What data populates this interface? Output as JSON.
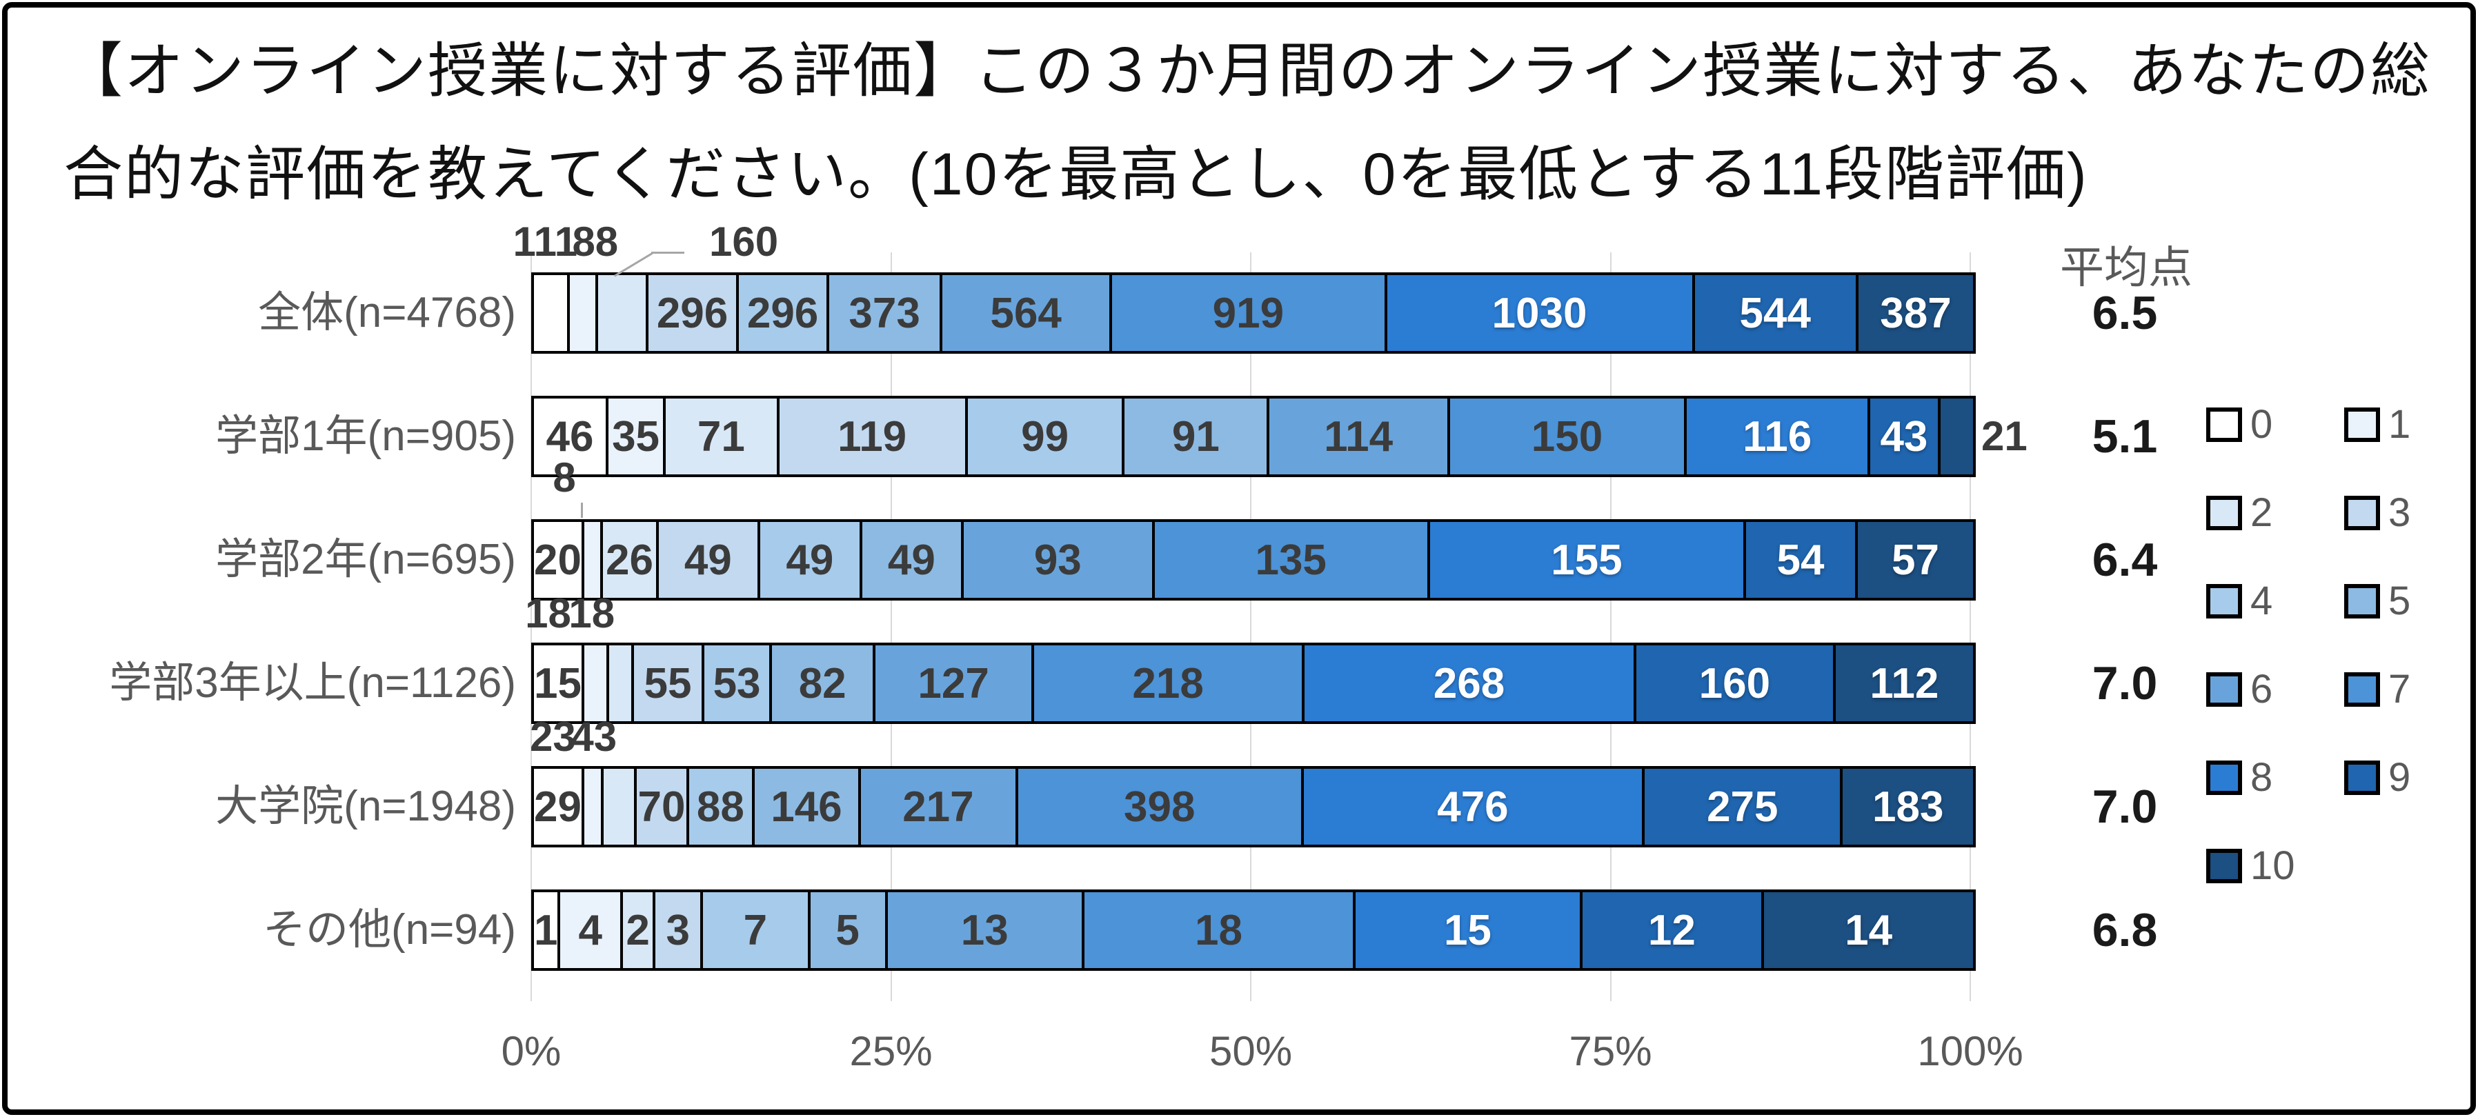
{
  "title": {
    "line1": "【オンライン授業に対する評価】この３か月間のオンライン授業に対する、あなたの総",
    "line2": "合的な評価を教えてください。(10を最高とし、0を最低とする11段階評価)"
  },
  "average_header": "平均点",
  "colors": {
    "palette": [
      "#FFFFFF",
      "#EAF2FB",
      "#D9E8F6",
      "#C2D9F0",
      "#A7CBEB",
      "#8CBAE3",
      "#68A4DB",
      "#4C93D8",
      "#2B7CD3",
      "#1F65AF",
      "#1C4F82"
    ],
    "segment_border": "#000000",
    "dark_label": "#3B3B3B",
    "light_label": "#FFFFFF",
    "gridline": "#D9D9D9",
    "axis_text": "#595959",
    "leader": "#A6A6A6"
  },
  "chart_data": {
    "type": "bar",
    "stacked": true,
    "orientation": "horizontal",
    "title": "【オンライン授業に対する評価】この３か月間のオンライン授業に対する、あなたの総合的な評価を教えてください。(10を最高とし、0を最低とする11段階評価)",
    "xlabel": "",
    "ylabel": "",
    "x_ticks": [
      "0%",
      "25%",
      "50%",
      "75%",
      "100%"
    ],
    "xlim_percent": [
      0,
      100
    ],
    "grid": true,
    "legend_position": "right",
    "series_labels": [
      "0",
      "1",
      "2",
      "3",
      "4",
      "5",
      "6",
      "7",
      "8",
      "9",
      "10"
    ],
    "legend_pairs": [
      [
        "0",
        "1"
      ],
      [
        "2",
        "3"
      ],
      [
        "4",
        "5"
      ],
      [
        "6",
        "7"
      ],
      [
        "8",
        "9"
      ],
      [
        "10"
      ]
    ],
    "categories": [
      "全体(n=4768)",
      "学部1年(n=905)",
      "学部2年(n=695)",
      "学部3年以上(n=1126)",
      "大学院(n=1948)",
      "その他(n=94)"
    ],
    "rows": [
      {
        "label": "全体(n=4768)",
        "total": 4768,
        "average": "6.5",
        "values": [
          111,
          88,
          160,
          296,
          296,
          373,
          564,
          919,
          1030,
          544,
          387
        ],
        "callouts": [
          {
            "i": 0,
            "dx": -4,
            "gap": 12
          },
          {
            "i": 1,
            "dx": 25,
            "gap": 12
          },
          {
            "i": 2,
            "dx": 186,
            "gap": 12,
            "leader": "slant"
          }
        ]
      },
      {
        "label": "学部1年(n=905)",
        "total": 905,
        "average": "5.1",
        "values": [
          46,
          35,
          71,
          119,
          99,
          91,
          114,
          150,
          116,
          43,
          21
        ],
        "outside_right": {
          "i": 10
        }
      },
      {
        "label": "学部2年(n=695)",
        "total": 695,
        "average": "6.4",
        "values": [
          20,
          8,
          26,
          49,
          49,
          49,
          93,
          135,
          155,
          54,
          57
        ],
        "callouts": [
          {
            "i": 1,
            "dx": -24,
            "gap": 28,
            "leader": "vert"
          }
        ]
      },
      {
        "label": "学部3年以上(n=1126)",
        "total": 1126,
        "average": "7.0",
        "values": [
          15,
          18,
          18,
          55,
          53,
          82,
          127,
          218,
          268,
          160,
          112
        ],
        "callouts": [
          {
            "i": 1,
            "dx": -20,
            "gap": 10
          },
          {
            "i": 2,
            "dx": 10,
            "gap": 10
          }
        ]
      },
      {
        "label": "大学院(n=1948)",
        "total": 1948,
        "average": "7.0",
        "values": [
          29,
          23,
          43,
          70,
          88,
          146,
          217,
          398,
          476,
          275,
          183
        ],
        "callouts": [
          {
            "i": 1,
            "dx": -12,
            "gap": 10
          },
          {
            "i": 2,
            "dx": 12,
            "gap": 10
          }
        ]
      },
      {
        "label": "その他(n=94)",
        "total": 94,
        "average": "6.8",
        "values": [
          1,
          4,
          2,
          3,
          7,
          5,
          13,
          18,
          15,
          12,
          14
        ]
      }
    ]
  }
}
